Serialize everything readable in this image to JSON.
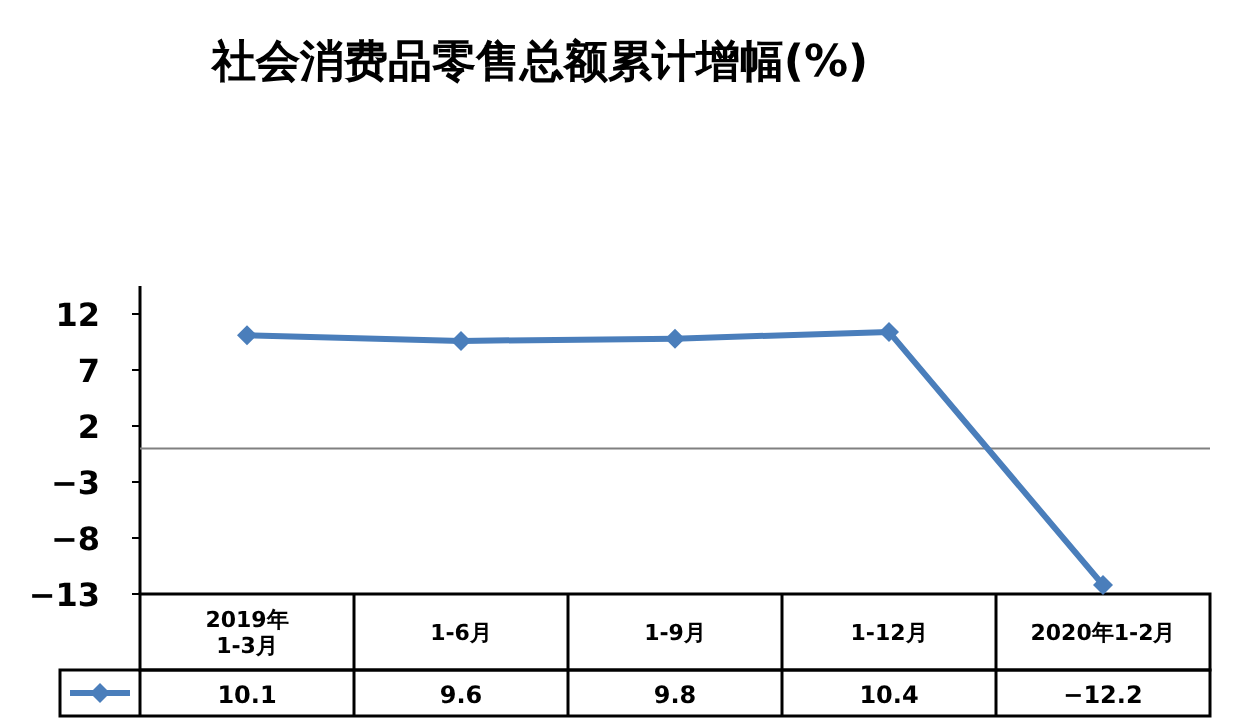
{
  "chart_data": {
    "type": "line",
    "title": "社会消费品零售总额累计增幅(%)",
    "categories": [
      "2019年\n1-3月",
      "1-6月",
      "1-9月",
      "1-12月",
      "2020年1-2月"
    ],
    "series": [
      {
        "color": "#4a7ebb",
        "values": [
          10.1,
          9.6,
          9.8,
          10.4,
          -12.2
        ]
      }
    ],
    "ylim": [
      -13,
      14.5
    ],
    "yticks": [
      -13,
      -8,
      -3,
      2,
      7,
      12
    ],
    "ref_lines": [
      {
        "axis": "y",
        "value": 0,
        "color": "#808080"
      }
    ],
    "marker": "diamond",
    "data_labels": true,
    "grid": false
  }
}
